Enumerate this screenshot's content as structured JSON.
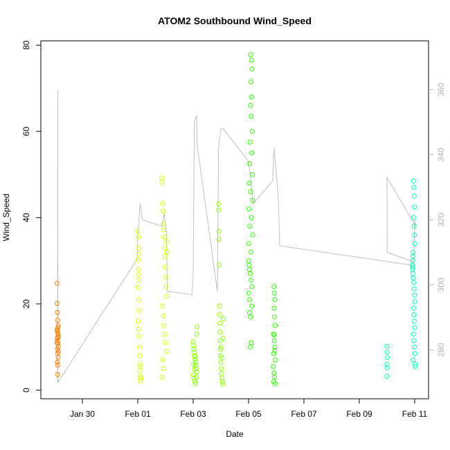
{
  "chart_data": {
    "type": "scatter",
    "title": "ATOM2 Southbound Wind_Speed",
    "xlabel": "Date",
    "ylabel": "Wind_Speed",
    "x_axis": {
      "type": "date",
      "range": [
        "2014-01-28T12:00",
        "2014-02-11T12:00"
      ],
      "tick_dates": [
        "2014-01-30",
        "2014-02-01",
        "2014-02-03",
        "2014-02-05",
        "2014-02-07",
        "2014-02-09",
        "2014-02-11"
      ],
      "tick_labels": [
        "Jan 30",
        "Feb 01",
        "Feb 03",
        "Feb 05",
        "Feb 07",
        "Feb 09",
        "Feb 11"
      ]
    },
    "y_axis": {
      "range": [
        -2,
        81
      ],
      "ticks": [
        0,
        20,
        40,
        60,
        80
      ]
    },
    "y2_axis": {
      "range": [
        265,
        375
      ],
      "ticks": [
        280,
        300,
        320,
        340,
        360
      ],
      "color": "#b3b3b3"
    },
    "grid": false,
    "legend": "none",
    "secondary_series": {
      "kind": "line",
      "color": "#bebebe",
      "points": [
        [
          "2014-01-29T02:30",
          270
        ],
        [
          "2014-01-29T02:40",
          360
        ],
        [
          "2014-01-29T02:50",
          270
        ],
        [
          "2014-01-31T23:30",
          308
        ],
        [
          "2014-02-01T00:00",
          315
        ],
        [
          "2014-02-01T02:00",
          325
        ],
        [
          "2014-02-01T04:00",
          320
        ],
        [
          "2014-02-01T21:00",
          318
        ],
        [
          "2014-02-01T23:00",
          322
        ],
        [
          "2014-02-02T01:00",
          316
        ],
        [
          "2014-02-02T01:30",
          298
        ],
        [
          "2014-02-02T23:00",
          297
        ],
        [
          "2014-02-03T00:00",
          303
        ],
        [
          "2014-02-03T01:00",
          350
        ],
        [
          "2014-02-03T03:00",
          352
        ],
        [
          "2014-02-03T03:30",
          343
        ],
        [
          "2014-02-03T21:00",
          298
        ],
        [
          "2014-02-03T22:00",
          342
        ],
        [
          "2014-02-04T00:00",
          348
        ],
        [
          "2014-02-04T02:00",
          348
        ],
        [
          "2014-02-05T00:00",
          338
        ],
        [
          "2014-02-05T02:00",
          332
        ],
        [
          "2014-02-05T04:00",
          325
        ],
        [
          "2014-02-05T21:00",
          332
        ],
        [
          "2014-02-05T22:00",
          342
        ],
        [
          "2014-02-06T00:00",
          335
        ],
        [
          "2014-02-06T02:00",
          325
        ],
        [
          "2014-02-06T03:00",
          312
        ],
        [
          "2014-02-10T23:00",
          306
        ],
        [
          "2014-02-11T00:00",
          320
        ],
        [
          "2014-02-11T01:00",
          318
        ],
        [
          "2014-02-10T00:00",
          333
        ],
        [
          "2014-02-10T00:10",
          310
        ],
        [
          "2014-02-10T23:30",
          307
        ]
      ]
    },
    "series": [
      {
        "color": "#ff7f00",
        "points": [
          [
            "2014-01-29T02:00",
            24.8
          ],
          [
            "2014-01-29T02:00",
            20.1
          ],
          [
            "2014-01-29T02:20",
            18.0
          ],
          [
            "2014-01-29T02:40",
            16.2
          ],
          [
            "2014-01-29T03:00",
            15.0
          ],
          [
            "2014-01-29T02:10",
            14.1
          ],
          [
            "2014-01-29T02:30",
            13.5
          ],
          [
            "2014-01-29T02:50",
            13.0
          ],
          [
            "2014-01-29T03:10",
            12.5
          ],
          [
            "2014-01-29T02:05",
            12.0
          ],
          [
            "2014-01-29T02:25",
            11.4
          ],
          [
            "2014-01-29T02:45",
            10.8
          ],
          [
            "2014-01-29T03:05",
            10.1
          ],
          [
            "2014-01-29T02:15",
            9.5
          ],
          [
            "2014-01-29T02:35",
            8.5
          ],
          [
            "2014-01-29T02:55",
            7.6
          ],
          [
            "2014-01-29T02:20",
            6.5
          ],
          [
            "2014-01-29T02:40",
            5.8
          ],
          [
            "2014-01-29T02:30",
            3.6
          ],
          [
            "2014-01-29T03:00",
            14.5
          ],
          [
            "2014-01-29T02:10",
            13.8
          ],
          [
            "2014-01-29T02:50",
            12.2
          ],
          [
            "2014-01-29T02:00",
            11.0
          ],
          [
            "2014-01-29T03:10",
            9.0
          ]
        ]
      },
      {
        "color": "#d4ff00",
        "points": [
          [
            "2014-02-01T00:00",
            36.8
          ],
          [
            "2014-02-01T00:30",
            35.5
          ],
          [
            "2014-02-01T01:00",
            33.0
          ],
          [
            "2014-02-01T00:20",
            30.2
          ],
          [
            "2014-02-01T00:40",
            28.0
          ],
          [
            "2014-02-01T01:10",
            25.5
          ],
          [
            "2014-02-01T00:10",
            23.8
          ],
          [
            "2014-02-01T00:50",
            21.0
          ],
          [
            "2014-02-01T01:20",
            18.5
          ],
          [
            "2014-02-01T00:15",
            16.0
          ],
          [
            "2014-02-01T00:45",
            14.2
          ],
          [
            "2014-02-01T01:15",
            12.5
          ],
          [
            "2014-02-01T01:30",
            10.0
          ],
          [
            "2014-02-01T01:40",
            8.0
          ],
          [
            "2014-02-01T01:50",
            6.0
          ],
          [
            "2014-02-01T02:00",
            4.5
          ],
          [
            "2014-02-01T02:10",
            3.2
          ],
          [
            "2014-02-01T02:20",
            2.2
          ],
          [
            "2014-02-01T01:05",
            31.5
          ],
          [
            "2014-02-01T00:35",
            26.8
          ],
          [
            "2014-02-01T02:30",
            5.5
          ],
          [
            "2014-02-01T02:40",
            2.8
          ],
          [
            "2014-02-01T21:00",
            49.2
          ],
          [
            "2014-02-01T21:20",
            48.2
          ],
          [
            "2014-02-01T21:40",
            43.3
          ],
          [
            "2014-02-01T22:00",
            41.5
          ],
          [
            "2014-02-01T22:20",
            38.6
          ],
          [
            "2014-02-01T22:40",
            37.2
          ],
          [
            "2014-02-01T23:00",
            35.5
          ],
          [
            "2014-02-01T23:20",
            33.0
          ],
          [
            "2014-02-01T23:40",
            31.0
          ],
          [
            "2014-02-02T00:00",
            28.5
          ],
          [
            "2014-02-02T00:20",
            26.2
          ],
          [
            "2014-02-02T00:40",
            24.0
          ],
          [
            "2014-02-02T01:00",
            21.8
          ],
          [
            "2014-02-01T21:30",
            19.5
          ],
          [
            "2014-02-01T22:10",
            17.2
          ],
          [
            "2014-02-01T22:50",
            15.0
          ],
          [
            "2014-02-01T23:30",
            13.0
          ],
          [
            "2014-02-02T00:10",
            11.0
          ],
          [
            "2014-02-02T00:50",
            9.0
          ],
          [
            "2014-02-01T21:50",
            7.0
          ],
          [
            "2014-02-01T22:30",
            5.0
          ],
          [
            "2014-02-01T21:10",
            3.0
          ],
          [
            "2014-02-02T01:10",
            34.5
          ],
          [
            "2014-02-02T01:20",
            32.0
          ]
        ]
      },
      {
        "color": "#8cff00",
        "points": [
          [
            "2014-02-03T00:00",
            11.2
          ],
          [
            "2014-02-03T00:20",
            10.3
          ],
          [
            "2014-02-03T00:40",
            9.5
          ],
          [
            "2014-02-03T01:00",
            8.8
          ],
          [
            "2014-02-03T01:20",
            8.0
          ],
          [
            "2014-02-03T01:40",
            7.2
          ],
          [
            "2014-02-03T02:00",
            6.5
          ],
          [
            "2014-02-03T02:20",
            5.8
          ],
          [
            "2014-02-03T02:40",
            5.0
          ],
          [
            "2014-02-03T03:00",
            4.2
          ],
          [
            "2014-02-03T00:10",
            3.5
          ],
          [
            "2014-02-03T00:50",
            2.8
          ],
          [
            "2014-02-03T01:30",
            2.0
          ],
          [
            "2014-02-03T02:10",
            1.5
          ],
          [
            "2014-02-03T02:50",
            3.0
          ],
          [
            "2014-02-03T03:20",
            14.7
          ],
          [
            "2014-02-03T03:10",
            13.0
          ],
          [
            "2014-02-03T00:30",
            6.0
          ],
          [
            "2014-02-03T01:10",
            4.8
          ],
          [
            "2014-02-03T01:50",
            7.8
          ],
          [
            "2014-02-03T22:00",
            43.2
          ],
          [
            "2014-02-03T22:10",
            41.8
          ],
          [
            "2014-02-03T22:20",
            36.8
          ],
          [
            "2014-02-03T22:30",
            35.0
          ],
          [
            "2014-02-03T22:40",
            29.0
          ],
          [
            "2014-02-03T22:50",
            19.5
          ],
          [
            "2014-02-03T23:00",
            17.5
          ],
          [
            "2014-02-03T23:10",
            15.5
          ],
          [
            "2014-02-03T23:20",
            13.5
          ],
          [
            "2014-02-03T23:30",
            11.5
          ],
          [
            "2014-02-03T23:40",
            9.5
          ],
          [
            "2014-02-03T23:50",
            8.0
          ],
          [
            "2014-02-04T00:00",
            6.5
          ],
          [
            "2014-02-04T00:20",
            5.0
          ],
          [
            "2014-02-04T00:40",
            3.8
          ],
          [
            "2014-02-04T01:00",
            2.8
          ],
          [
            "2014-02-04T01:20",
            2.0
          ],
          [
            "2014-02-04T01:40",
            1.4
          ],
          [
            "2014-02-04T02:00",
            12.0
          ],
          [
            "2014-02-04T02:10",
            16.5
          ],
          [
            "2014-02-04T00:10",
            10.0
          ],
          [
            "2014-02-04T00:50",
            7.5
          ]
        ]
      },
      {
        "color": "#2bff00",
        "points": [
          [
            "2014-02-05T02:00",
            77.8
          ],
          [
            "2014-02-05T02:30",
            76.5
          ],
          [
            "2014-02-05T03:00",
            74.5
          ],
          [
            "2014-02-05T02:10",
            71.5
          ],
          [
            "2014-02-05T02:40",
            68.0
          ],
          [
            "2014-02-05T01:40",
            66.0
          ],
          [
            "2014-02-05T02:20",
            63.5
          ],
          [
            "2014-02-05T03:10",
            60.0
          ],
          [
            "2014-02-05T01:20",
            57.5
          ],
          [
            "2014-02-05T02:50",
            55.0
          ],
          [
            "2014-02-05T01:00",
            52.5
          ],
          [
            "2014-02-05T03:20",
            50.0
          ],
          [
            "2014-02-05T00:40",
            48.0
          ],
          [
            "2014-02-05T01:50",
            46.0
          ],
          [
            "2014-02-05T03:30",
            44.0
          ],
          [
            "2014-02-05T00:20",
            42.0
          ],
          [
            "2014-02-05T02:35",
            40.0
          ],
          [
            "2014-02-05T01:10",
            38.0
          ],
          [
            "2014-02-05T03:40",
            36.0
          ],
          [
            "2014-02-05T00:10",
            34.0
          ],
          [
            "2014-02-05T02:05",
            32.0
          ],
          [
            "2014-02-05T00:00",
            30.0
          ],
          [
            "2014-02-05T00:30",
            29.0
          ],
          [
            "2014-02-05T00:50",
            28.0
          ],
          [
            "2014-02-05T01:30",
            27.0
          ],
          [
            "2014-02-05T02:15",
            25.5
          ],
          [
            "2014-02-05T03:05",
            24.0
          ],
          [
            "2014-02-05T00:15",
            22.5
          ],
          [
            "2014-02-05T01:05",
            21.0
          ],
          [
            "2014-02-05T02:45",
            19.5
          ],
          [
            "2014-02-05T00:45",
            18.0
          ],
          [
            "2014-02-05T01:45",
            17.0
          ],
          [
            "2014-02-05T02:25",
            11.0
          ],
          [
            "2014-02-05T01:35",
            10.0
          ],
          [
            "2014-02-05T22:00",
            24.0
          ],
          [
            "2014-02-05T22:30",
            22.5
          ],
          [
            "2014-02-05T23:00",
            21.0
          ],
          [
            "2014-02-05T22:10",
            19.0
          ],
          [
            "2014-02-05T22:40",
            17.0
          ],
          [
            "2014-02-05T23:10",
            15.0
          ],
          [
            "2014-02-05T21:40",
            13.0
          ],
          [
            "2014-02-05T22:20",
            11.5
          ],
          [
            "2014-02-05T22:50",
            10.0
          ],
          [
            "2014-02-05T21:50",
            8.5
          ],
          [
            "2014-02-05T23:20",
            7.0
          ],
          [
            "2014-02-05T21:30",
            5.5
          ],
          [
            "2014-02-05T22:05",
            4.0
          ],
          [
            "2014-02-05T22:35",
            3.0
          ],
          [
            "2014-02-05T21:45",
            2.0
          ],
          [
            "2014-02-05T23:05",
            1.5
          ],
          [
            "2014-02-05T22:15",
            12.8
          ],
          [
            "2014-02-05T22:45",
            9.2
          ]
        ]
      },
      {
        "color": "#00ffb0",
        "points": [
          [
            "2014-02-10T00:00",
            10.2
          ],
          [
            "2014-02-10T00:10",
            8.8
          ],
          [
            "2014-02-10T00:20",
            7.5
          ],
          [
            "2014-02-10T00:05",
            6.0
          ],
          [
            "2014-02-10T00:15",
            5.2
          ],
          [
            "2014-02-10T00:00",
            3.2
          ],
          [
            "2014-02-10T23:00",
            48.5
          ],
          [
            "2014-02-10T23:20",
            47.0
          ],
          [
            "2014-02-10T23:40",
            45.0
          ],
          [
            "2014-02-11T00:00",
            42.5
          ],
          [
            "2014-02-10T23:10",
            40.0
          ],
          [
            "2014-02-10T23:30",
            38.0
          ],
          [
            "2014-02-10T23:50",
            36.0
          ],
          [
            "2014-02-11T00:10",
            34.0
          ],
          [
            "2014-02-10T22:40",
            32.0
          ],
          [
            "2014-02-10T22:20",
            30.0
          ],
          [
            "2014-02-10T22:00",
            29.0
          ],
          [
            "2014-02-10T22:10",
            28.0
          ],
          [
            "2014-02-10T22:30",
            27.0
          ],
          [
            "2014-02-10T22:50",
            26.0
          ],
          [
            "2014-02-10T23:15",
            25.0
          ],
          [
            "2014-02-10T23:35",
            23.5
          ],
          [
            "2014-02-10T23:55",
            22.0
          ],
          [
            "2014-02-11T00:15",
            20.5
          ],
          [
            "2014-02-10T23:05",
            19.0
          ],
          [
            "2014-02-10T23:25",
            17.5
          ],
          [
            "2014-02-10T23:45",
            16.0
          ],
          [
            "2014-02-11T00:05",
            14.5
          ],
          [
            "2014-02-10T22:55",
            13.0
          ],
          [
            "2014-02-10T23:22",
            11.5
          ],
          [
            "2014-02-10T23:42",
            10.0
          ],
          [
            "2014-02-11T00:20",
            8.5
          ],
          [
            "2014-02-10T22:45",
            7.0
          ],
          [
            "2014-02-11T00:25",
            6.0
          ],
          [
            "2014-02-11T00:30",
            5.5
          ],
          [
            "2014-02-10T22:35",
            31.0
          ],
          [
            "2014-02-10T22:25",
            28.5
          ]
        ]
      }
    ]
  }
}
